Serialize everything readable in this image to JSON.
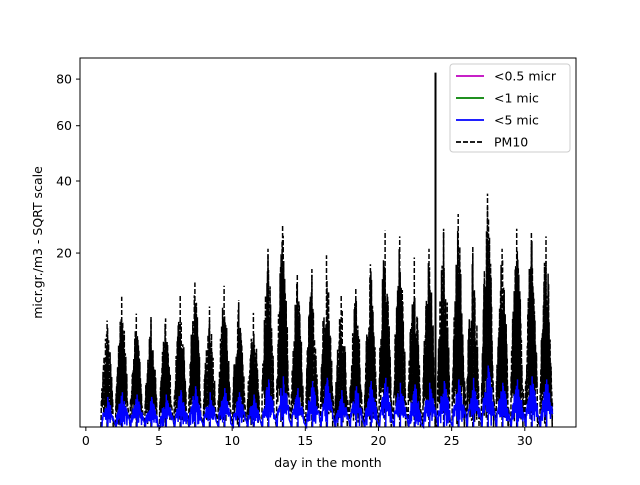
{
  "chart_data": {
    "type": "line",
    "title": "",
    "xlabel": "day in the month",
    "ylabel": "micr.gr./m3 - SQRT scale",
    "xlim": [
      -0.4,
      33.5
    ],
    "ylim": [
      0,
      90
    ],
    "y_scale": "sqrt",
    "grid": false,
    "legend_position": "top-right",
    "x_ticks": [
      0,
      5,
      10,
      15,
      20,
      25,
      30
    ],
    "x_tick_labels": [
      "0",
      "5",
      "10",
      "15",
      "20",
      "25",
      "30"
    ],
    "y_ticks": [
      20,
      40,
      60,
      80
    ],
    "y_tick_labels": [
      "20",
      "40",
      "60",
      "80"
    ],
    "pm10_daily_peaks": [
      {
        "day": 1.45,
        "peak": 7.5
      },
      {
        "day": 2.45,
        "peak": 11.2
      },
      {
        "day": 3.45,
        "peak": 8.5
      },
      {
        "day": 4.45,
        "peak": 8.0
      },
      {
        "day": 5.45,
        "peak": 7.8
      },
      {
        "day": 6.45,
        "peak": 11.5
      },
      {
        "day": 7.45,
        "peak": 13.8
      },
      {
        "day": 8.45,
        "peak": 9.6
      },
      {
        "day": 9.45,
        "peak": 13.2
      },
      {
        "day": 10.45,
        "peak": 10.6
      },
      {
        "day": 11.45,
        "peak": 8.6
      },
      {
        "day": 12.45,
        "peak": 21.0
      },
      {
        "day": 13.45,
        "peak": 27.0
      },
      {
        "day": 14.45,
        "peak": 15.6
      },
      {
        "day": 15.45,
        "peak": 16.5
      },
      {
        "day": 16.45,
        "peak": 19.5
      },
      {
        "day": 17.45,
        "peak": 11.5
      },
      {
        "day": 18.45,
        "peak": 12.8
      },
      {
        "day": 19.45,
        "peak": 17.5
      },
      {
        "day": 20.45,
        "peak": 25.5
      },
      {
        "day": 21.45,
        "peak": 24.0
      },
      {
        "day": 22.45,
        "peak": 19.0
      },
      {
        "day": 23.45,
        "peak": 21.0
      },
      {
        "day": 23.9,
        "peak": 83.0
      },
      {
        "day": 24.45,
        "peak": 26.0
      },
      {
        "day": 25.45,
        "peak": 30.0
      },
      {
        "day": 26.45,
        "peak": 21.5
      },
      {
        "day": 27.45,
        "peak": 36.0
      },
      {
        "day": 28.45,
        "peak": 21.0
      },
      {
        "day": 29.45,
        "peak": 26.0
      },
      {
        "day": 30.45,
        "peak": 25.0
      },
      {
        "day": 31.45,
        "peak": 24.0
      }
    ],
    "pm5_daily_peaks": [
      {
        "day": 1.5,
        "peak": 0.6
      },
      {
        "day": 2.5,
        "peak": 0.8
      },
      {
        "day": 3.5,
        "peak": 0.7
      },
      {
        "day": 4.5,
        "peak": 0.6
      },
      {
        "day": 5.5,
        "peak": 0.7
      },
      {
        "day": 6.5,
        "peak": 0.9
      },
      {
        "day": 7.5,
        "peak": 1.1
      },
      {
        "day": 8.5,
        "peak": 0.8
      },
      {
        "day": 9.5,
        "peak": 1.0
      },
      {
        "day": 10.5,
        "peak": 0.8
      },
      {
        "day": 11.5,
        "peak": 0.7
      },
      {
        "day": 12.5,
        "peak": 1.5
      },
      {
        "day": 13.5,
        "peak": 1.7
      },
      {
        "day": 14.5,
        "peak": 1.0
      },
      {
        "day": 15.5,
        "peak": 1.4
      },
      {
        "day": 16.5,
        "peak": 1.6
      },
      {
        "day": 17.5,
        "peak": 0.9
      },
      {
        "day": 18.5,
        "peak": 1.1
      },
      {
        "day": 19.5,
        "peak": 1.4
      },
      {
        "day": 20.5,
        "peak": 1.6
      },
      {
        "day": 21.5,
        "peak": 1.3
      },
      {
        "day": 22.5,
        "peak": 1.2
      },
      {
        "day": 23.5,
        "peak": 1.3
      },
      {
        "day": 24.5,
        "peak": 1.4
      },
      {
        "day": 25.5,
        "peak": 1.5
      },
      {
        "day": 26.5,
        "peak": 1.6
      },
      {
        "day": 27.5,
        "peak": 2.5
      },
      {
        "day": 28.5,
        "peak": 1.3
      },
      {
        "day": 29.5,
        "peak": 1.5
      },
      {
        "day": 30.5,
        "peak": 1.7
      },
      {
        "day": 31.5,
        "peak": 1.5
      }
    ],
    "series": [
      {
        "name": "<0.5 micr",
        "color": "#bf00bf",
        "style": "solid"
      },
      {
        "name": "<1 mic",
        "color": "#008000",
        "style": "solid"
      },
      {
        "name": "<5 mic",
        "color": "#0000ff",
        "style": "solid"
      },
      {
        "name": "PM10",
        "color": "#000000",
        "style": "dashed"
      }
    ]
  }
}
